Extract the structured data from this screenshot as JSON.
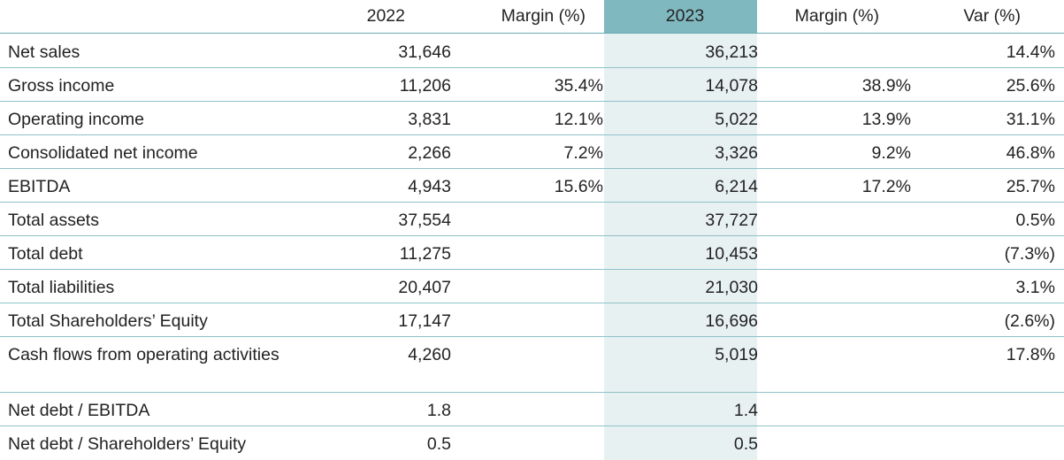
{
  "table": {
    "headers": {
      "label": "",
      "y2022": "2022",
      "margin2022": "Margin (%)",
      "y2023": "2023",
      "margin2023": "Margin (%)",
      "var": "Var (%)"
    },
    "rows": [
      {
        "label": "Net sales",
        "y2022": "31,646",
        "margin2022": "",
        "y2023": "36,213",
        "margin2023": "",
        "var": "14.4%"
      },
      {
        "label": "Gross income",
        "y2022": "11,206",
        "margin2022": "35.4%",
        "y2023": "14,078",
        "margin2023": "38.9%",
        "var": "25.6%"
      },
      {
        "label": "Operating income",
        "y2022": "3,831",
        "margin2022": "12.1%",
        "y2023": "5,022",
        "margin2023": "13.9%",
        "var": "31.1%"
      },
      {
        "label": "Consolidated net income",
        "y2022": "2,266",
        "margin2022": "7.2%",
        "y2023": "3,326",
        "margin2023": "9.2%",
        "var": "46.8%"
      },
      {
        "label": "EBITDA",
        "y2022": "4,943",
        "margin2022": "15.6%",
        "y2023": "6,214",
        "margin2023": "17.2%",
        "var": "25.7%"
      },
      {
        "label": "Total assets",
        "y2022": "37,554",
        "margin2022": "",
        "y2023": "37,727",
        "margin2023": "",
        "var": "0.5%"
      },
      {
        "label": "Total debt",
        "y2022": "11,275",
        "margin2022": "",
        "y2023": "10,453",
        "margin2023": "",
        "var": "(7.3%)"
      },
      {
        "label": "Total liabilities",
        "y2022": "20,407",
        "margin2022": "",
        "y2023": "21,030",
        "margin2023": "",
        "var": "3.1%"
      },
      {
        "label": "Total Shareholders’ Equity",
        "y2022": "17,147",
        "margin2022": "",
        "y2023": "16,696",
        "margin2023": "",
        "var": "(2.6%)"
      },
      {
        "label": "Cash flows from operating activities",
        "y2022": "4,260",
        "margin2022": "",
        "y2023": "5,019",
        "margin2023": "",
        "var": "17.8%"
      },
      {
        "label": "Net debt / EBITDA",
        "y2022": "1.8",
        "margin2022": "",
        "y2023": "1.4",
        "margin2023": "",
        "var": ""
      },
      {
        "label": "Net debt / Shareholders’ Equity",
        "y2022": "0.5",
        "margin2022": "",
        "y2023": "0.5",
        "margin2023": "",
        "var": ""
      }
    ]
  },
  "colors": {
    "highlight_header": "#80b8bf",
    "highlight_column": "#e8f1f2",
    "row_divider": "#8ec2c8",
    "text": "#222222"
  }
}
